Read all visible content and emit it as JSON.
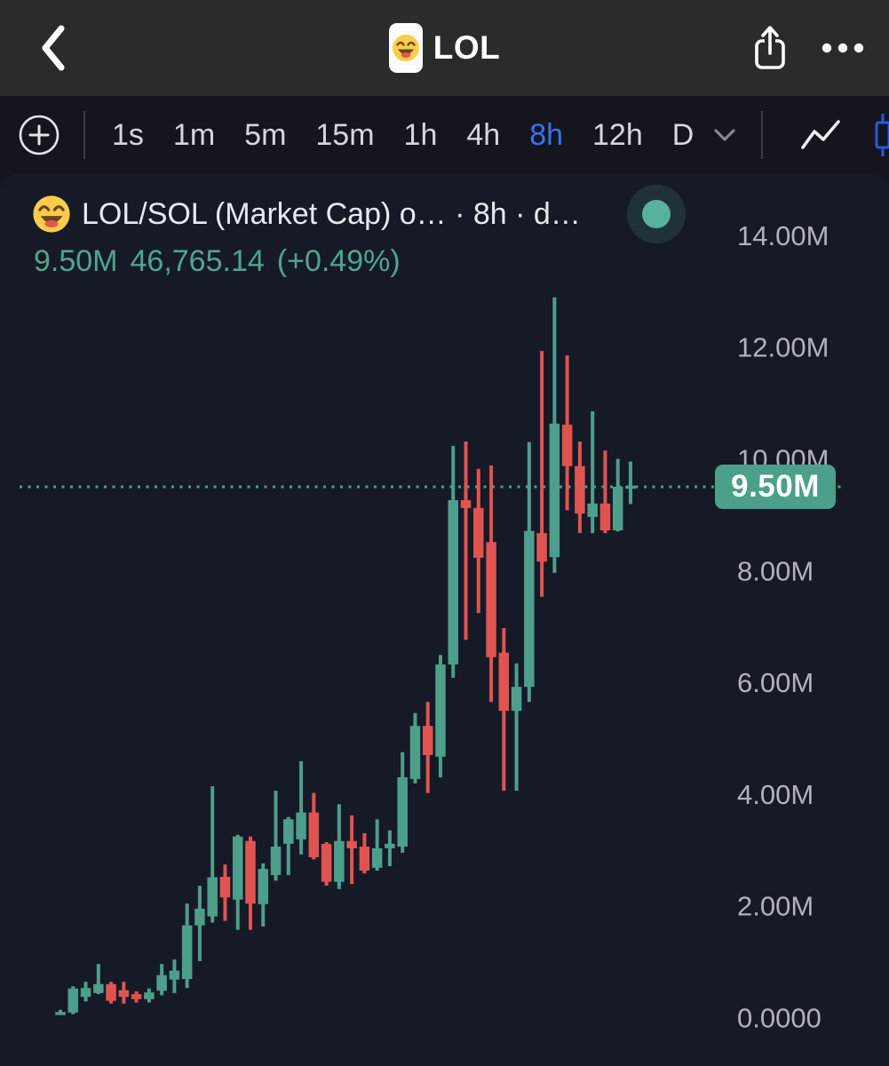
{
  "nav": {
    "title": "LOL",
    "back_icon": "chevron-left",
    "share_icon": "ios-share",
    "more_icon": "ellipsis"
  },
  "toolbar": {
    "timeframes": [
      "1s",
      "1m",
      "5m",
      "15m",
      "1h",
      "4h",
      "8h",
      "12h",
      "D"
    ],
    "selected_timeframe": "8h",
    "accent_color": "#3b70f4"
  },
  "chart": {
    "title": "LOL/SOL (Market Cap) o…  · 8h · d…",
    "price": {
      "market_cap": "9.50M",
      "last_value": "46,765.14",
      "change": "(+0.49%)"
    },
    "price_tag": "9.50M",
    "status_dot_color": "#56b29b",
    "text_green": "#4fa58d"
  },
  "chart_data": {
    "type": "candlestick",
    "title": "LOL/SOL (Market Cap), 8h",
    "unit": "M (market cap, millions)",
    "ylim": [
      0,
      15.2
    ],
    "grid": false,
    "legend": "none",
    "current_price": 9.5,
    "current_price_label": "9.50M",
    "y_axis": {
      "ticks": [
        {
          "label": "14.00M",
          "value": 14
        },
        {
          "label": "12.00M",
          "value": 12
        },
        {
          "label": "10.00M",
          "value": 10
        },
        {
          "label": "8.00M",
          "value": 8
        },
        {
          "label": "6.00M",
          "value": 6
        },
        {
          "label": "4.00M",
          "value": 4
        },
        {
          "label": "2.00M",
          "value": 2
        },
        {
          "label": "0.0000",
          "value": 0
        }
      ]
    },
    "colors": {
      "up": "#4e9e8c",
      "down": "#df5451",
      "price_line": "#4e9e8c",
      "axis_text": "#b0b3be"
    },
    "candles_format": [
      "open",
      "high",
      "low",
      "close"
    ],
    "candles": [
      [
        0.1,
        0.14,
        0.06,
        0.1
      ],
      [
        0.09,
        0.56,
        0.06,
        0.52
      ],
      [
        0.37,
        0.64,
        0.29,
        0.53
      ],
      [
        0.44,
        0.96,
        0.42,
        0.6
      ],
      [
        0.6,
        0.64,
        0.25,
        0.3
      ],
      [
        0.49,
        0.64,
        0.25,
        0.37
      ],
      [
        0.42,
        0.47,
        0.27,
        0.33
      ],
      [
        0.33,
        0.52,
        0.27,
        0.45
      ],
      [
        0.48,
        0.96,
        0.4,
        0.76
      ],
      [
        0.68,
        1.04,
        0.44,
        0.84
      ],
      [
        0.69,
        2.04,
        0.53,
        1.65
      ],
      [
        1.65,
        2.36,
        1.01,
        1.95
      ],
      [
        1.81,
        4.14,
        1.7,
        2.51
      ],
      [
        2.52,
        2.74,
        1.73,
        2.15
      ],
      [
        2.11,
        3.27,
        1.57,
        3.24
      ],
      [
        3.16,
        3.24,
        1.57,
        2.04
      ],
      [
        2.03,
        2.76,
        1.63,
        2.66
      ],
      [
        2.55,
        4.06,
        2.45,
        3.06
      ],
      [
        3.11,
        3.59,
        2.55,
        3.55
      ],
      [
        3.19,
        4.59,
        2.92,
        3.67
      ],
      [
        3.67,
        4.02,
        2.83,
        2.87
      ],
      [
        3.11,
        3.14,
        2.36,
        2.43
      ],
      [
        2.43,
        3.82,
        2.3,
        3.16
      ],
      [
        3.16,
        3.62,
        2.39,
        3.03
      ],
      [
        3.06,
        3.3,
        2.58,
        2.63
      ],
      [
        2.68,
        3.55,
        2.63,
        3.03
      ],
      [
        3.03,
        3.35,
        2.71,
        3.11
      ],
      [
        3.06,
        4.75,
        2.95,
        4.3
      ],
      [
        4.27,
        5.45,
        4.19,
        5.22
      ],
      [
        5.22,
        5.65,
        4.02,
        4.7
      ],
      [
        4.67,
        6.49,
        4.3,
        6.32
      ],
      [
        6.32,
        10.23,
        6.08,
        9.26
      ],
      [
        9.26,
        10.31,
        6.76,
        9.12
      ],
      [
        9.12,
        9.82,
        7.24,
        8.23
      ],
      [
        8.51,
        9.88,
        5.65,
        6.45
      ],
      [
        6.53,
        6.97,
        4.06,
        5.49
      ],
      [
        5.49,
        6.34,
        4.06,
        5.92
      ],
      [
        5.92,
        10.3,
        5.65,
        8.71
      ],
      [
        8.67,
        11.93,
        7.53,
        8.16
      ],
      [
        8.24,
        12.89,
        7.96,
        10.63
      ],
      [
        10.61,
        11.85,
        9.08,
        9.87
      ],
      [
        9.87,
        10.31,
        8.67,
        9.02
      ],
      [
        8.96,
        10.85,
        8.67,
        9.2
      ],
      [
        9.2,
        10.15,
        8.67,
        8.72
      ],
      [
        8.72,
        10.0,
        8.7,
        9.5
      ],
      [
        9.5,
        9.95,
        9.19,
        9.52
      ]
    ]
  }
}
